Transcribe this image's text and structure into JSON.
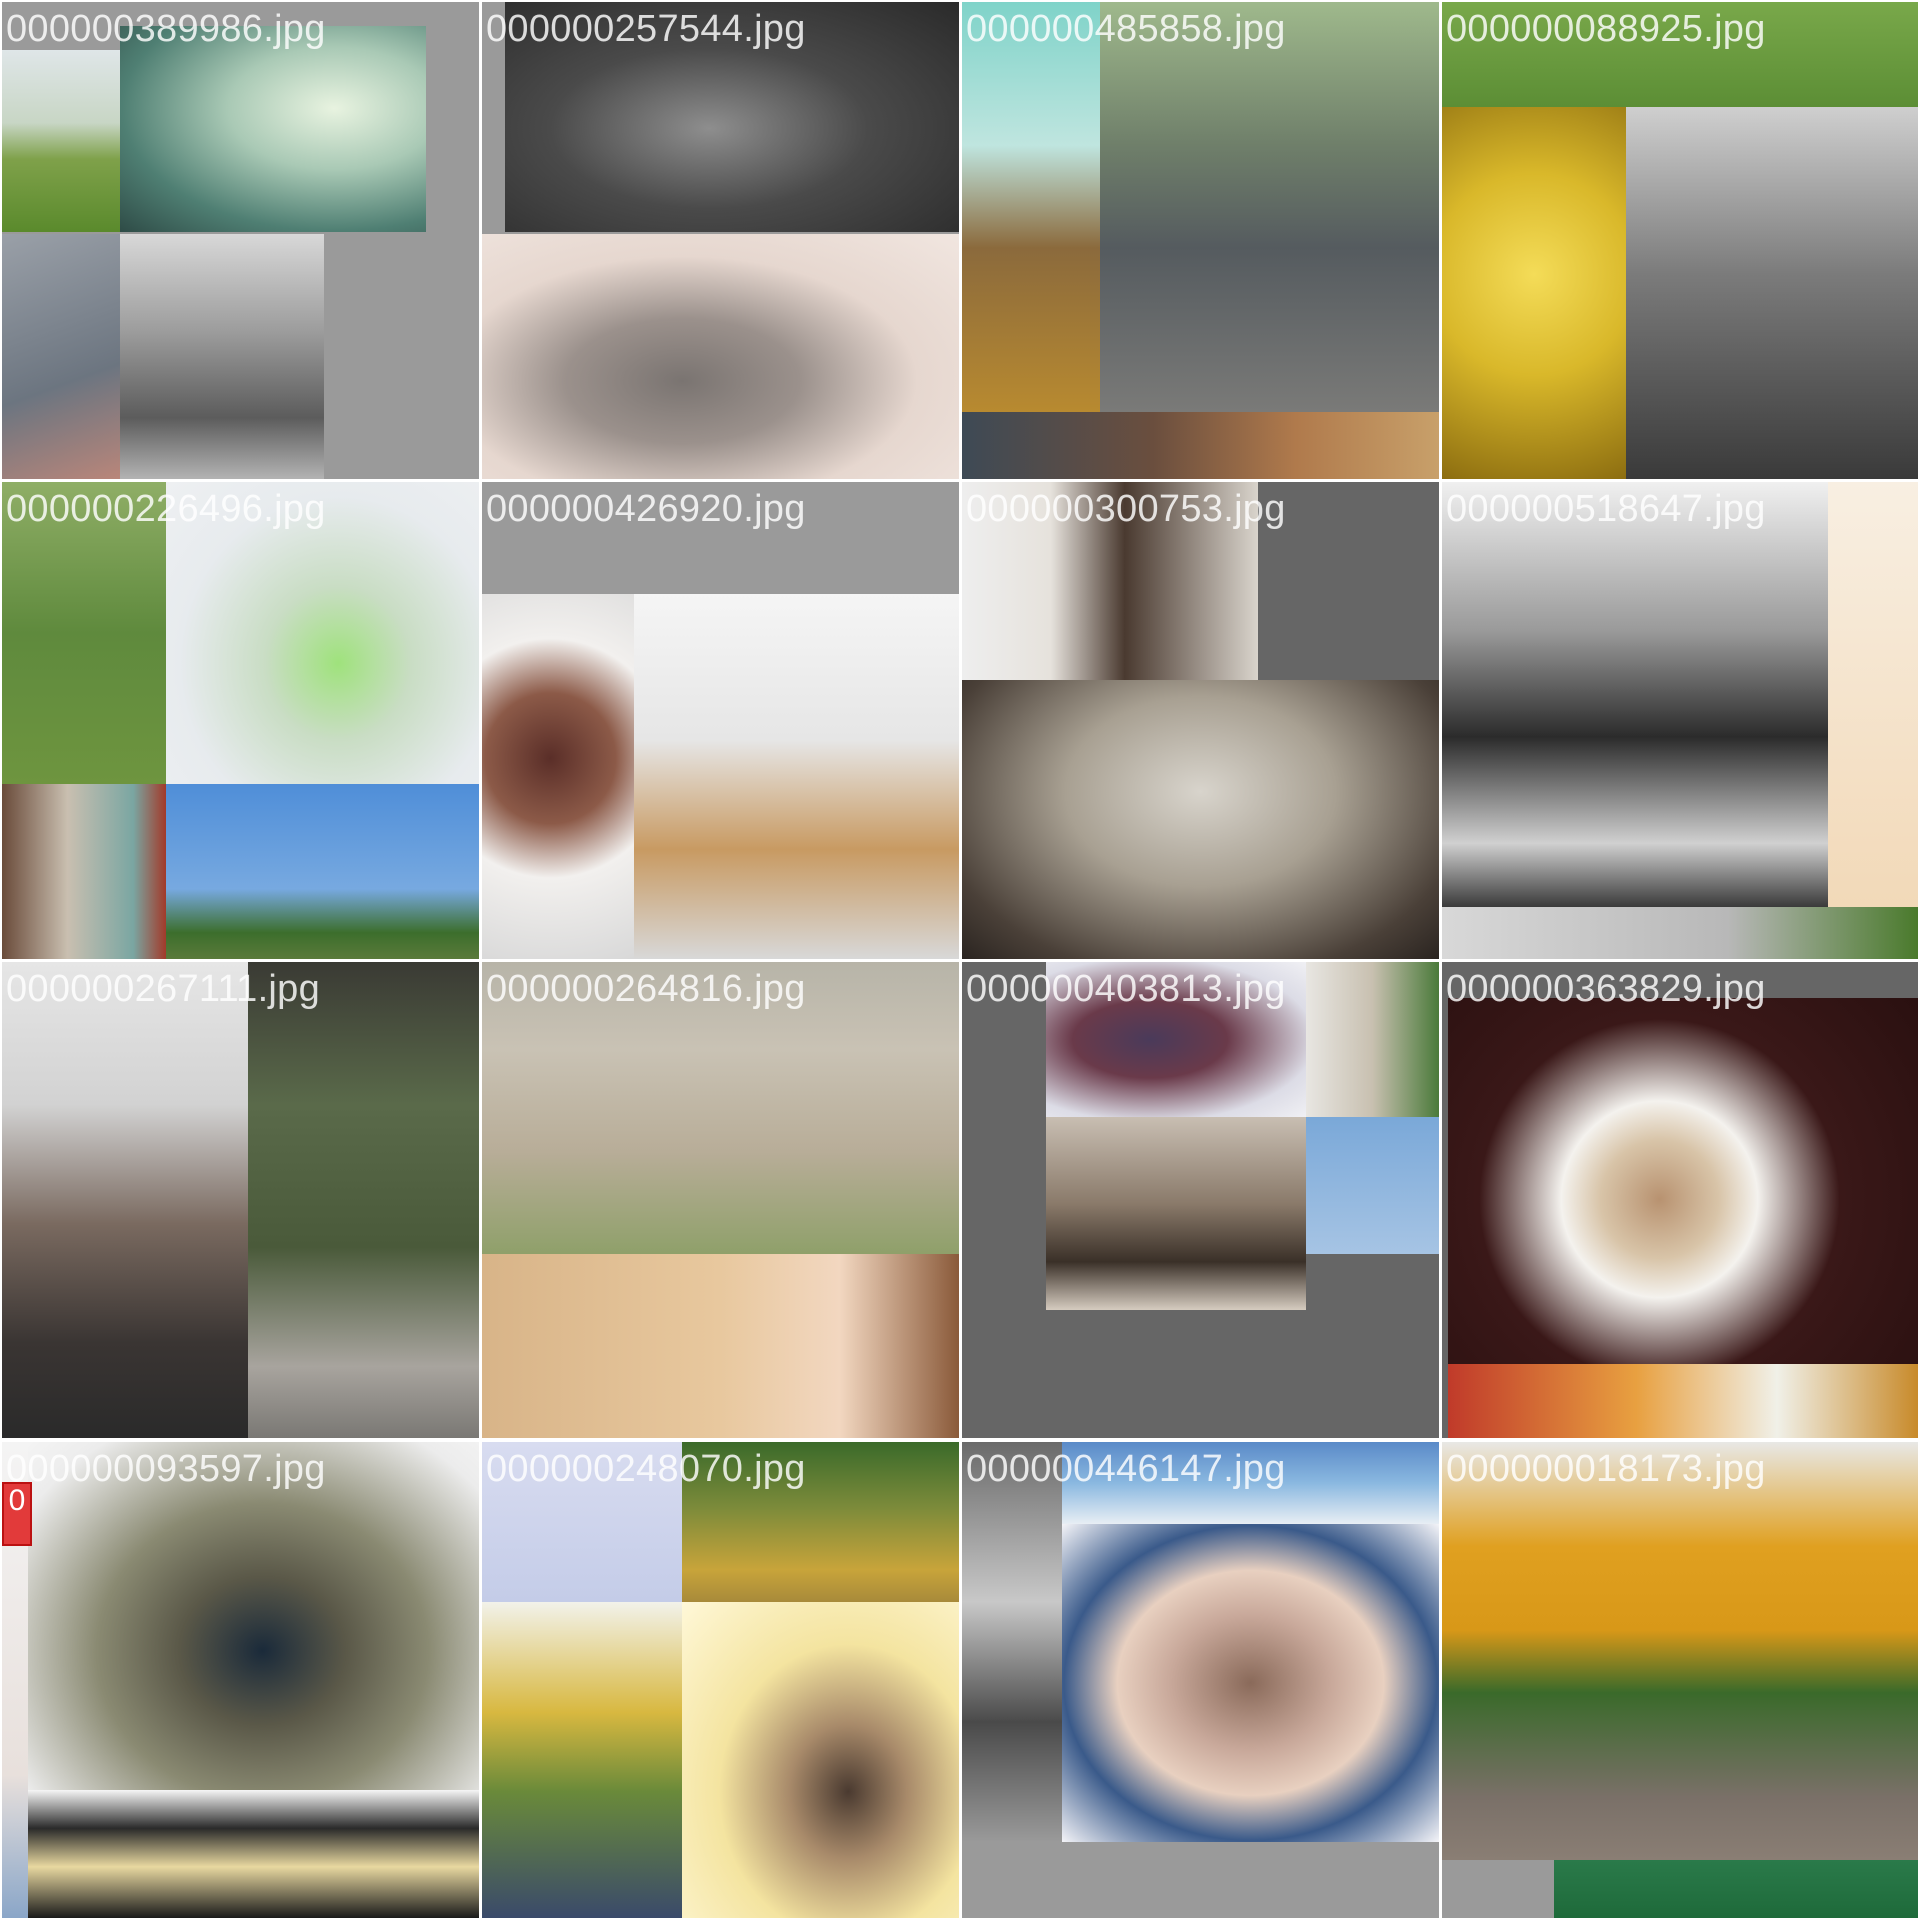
{
  "grid": {
    "tiles": [
      {
        "filename": "000000389986.jpg",
        "background": "#9a9a9a"
      },
      {
        "filename": "000000257544.jpg",
        "background": "#9a9a9a"
      },
      {
        "filename": "000000485858.jpg",
        "background": "#9a9a9a"
      },
      {
        "filename": "000000088925.jpg",
        "background": "#9a9a9a"
      },
      {
        "filename": "000000226496.jpg",
        "background": "#9a9a9a"
      },
      {
        "filename": "000000426920.jpg",
        "background": "#9a9a9a"
      },
      {
        "filename": "000000300753.jpg",
        "background": "#666666"
      },
      {
        "filename": "000000518647.jpg",
        "background": "#9a9a9a"
      },
      {
        "filename": "000000267111.jpg",
        "background": "#9a9a9a"
      },
      {
        "filename": "000000264816.jpg",
        "background": "#9a9a9a"
      },
      {
        "filename": "000000403813.jpg",
        "background": "#666666"
      },
      {
        "filename": "000000363829.jpg",
        "background": "#666666"
      },
      {
        "filename": "000000093597.jpg",
        "background": "#9a9a9a",
        "badge": "0"
      },
      {
        "filename": "000000248070.jpg",
        "background": "#9a9a9a"
      },
      {
        "filename": "000000446147.jpg",
        "background": "#9a9a9a"
      },
      {
        "filename": "000000018173.jpg",
        "background": "#9a9a9a"
      }
    ]
  },
  "colors": {
    "caption_text": "#ffffff",
    "tile_gap": "#ffffff",
    "badge": "#e23a3a"
  }
}
